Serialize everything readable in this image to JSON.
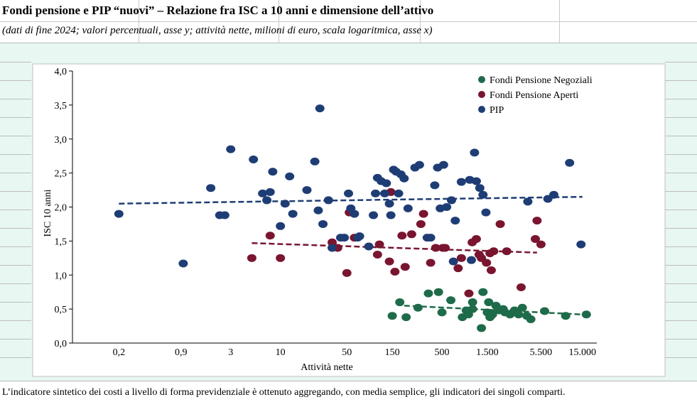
{
  "header": {
    "title": "Fondi pensione e PIP “nuovi” – Relazione fra ISC a 10 anni e dimensione dell’attivo",
    "subtitle": "(dati di fine 2024; valori percentuali, asse y; attività nette, milioni di euro, scala logaritmica, asse x)"
  },
  "footnote": "L’indicatore sintetico dei costi a livello di forma previdenziale è ottenuto aggregando, con media semplice, gli indicatori dei singoli comparti.",
  "chart_data": {
    "type": "scatter",
    "x_scale": "log",
    "xlabel": "Attività  nette",
    "ylabel": "ISC 10 anni",
    "x_ticks": [
      {
        "value": 0.2,
        "label": "0,2"
      },
      {
        "value": 0.9,
        "label": "0,9"
      },
      {
        "value": 3,
        "label": "3"
      },
      {
        "value": 10,
        "label": "10"
      },
      {
        "value": 50,
        "label": "50"
      },
      {
        "value": 150,
        "label": "150"
      },
      {
        "value": 500,
        "label": "500"
      },
      {
        "value": 1500,
        "label": "1.500"
      },
      {
        "value": 5500,
        "label": "5.500"
      },
      {
        "value": 15000,
        "label": "15.000"
      }
    ],
    "y_ticks": [
      {
        "value": 0,
        "label": "0,0"
      },
      {
        "value": 0.5,
        "label": "0,5"
      },
      {
        "value": 1.0,
        "label": "1,0"
      },
      {
        "value": 1.5,
        "label": "1,5"
      },
      {
        "value": 2.0,
        "label": "2,0"
      },
      {
        "value": 2.5,
        "label": "2,5"
      },
      {
        "value": 3.0,
        "label": "3,0"
      },
      {
        "value": 3.5,
        "label": "3,5"
      },
      {
        "value": 4.0,
        "label": "4,0"
      }
    ],
    "ylim": [
      0,
      4.0
    ],
    "xlim": [
      0.065,
      30000
    ],
    "grid": false,
    "legend_position": "top-right",
    "series": [
      {
        "name": "Fondi Pensione Negoziali",
        "color": "#1e6b4a",
        "trend": [
          [
            200,
            0.55
          ],
          [
            15000,
            0.42
          ]
        ],
        "points": [
          [
            150,
            0.4
          ],
          [
            180,
            0.6
          ],
          [
            210,
            0.38
          ],
          [
            280,
            0.52
          ],
          [
            360,
            0.73
          ],
          [
            460,
            0.75
          ],
          [
            500,
            0.45
          ],
          [
            620,
            0.63
          ],
          [
            820,
            0.38
          ],
          [
            900,
            0.48
          ],
          [
            950,
            0.42
          ],
          [
            1050,
            0.6
          ],
          [
            1050,
            0.5
          ],
          [
            1300,
            0.22
          ],
          [
            1350,
            0.75
          ],
          [
            1500,
            0.45
          ],
          [
            1550,
            0.6
          ],
          [
            1600,
            0.38
          ],
          [
            1700,
            0.42
          ],
          [
            1850,
            0.55
          ],
          [
            2000,
            0.48
          ],
          [
            2200,
            0.5
          ],
          [
            2300,
            0.45
          ],
          [
            2600,
            0.42
          ],
          [
            2900,
            0.48
          ],
          [
            3200,
            0.42
          ],
          [
            3500,
            0.52
          ],
          [
            3900,
            0.4
          ],
          [
            4300,
            0.35
          ],
          [
            6000,
            0.47
          ],
          [
            10000,
            0.4
          ],
          [
            16500,
            0.42
          ]
        ]
      },
      {
        "name": "Fondi Pensione Aperti",
        "color": "#7a1530",
        "trend": [
          [
            5,
            1.47
          ],
          [
            5000,
            1.33
          ]
        ],
        "points": [
          [
            5,
            1.25
          ],
          [
            7.8,
            1.58
          ],
          [
            10,
            1.25
          ],
          [
            35,
            1.48
          ],
          [
            40,
            1.4
          ],
          [
            50,
            1.03
          ],
          [
            53,
            1.92
          ],
          [
            60,
            1.55
          ],
          [
            105,
            1.3
          ],
          [
            110,
            1.45
          ],
          [
            140,
            1.2
          ],
          [
            145,
            2.22
          ],
          [
            160,
            1.05
          ],
          [
            190,
            1.58
          ],
          [
            205,
            1.12
          ],
          [
            240,
            1.6
          ],
          [
            300,
            1.75
          ],
          [
            320,
            1.9
          ],
          [
            380,
            1.18
          ],
          [
            430,
            1.4
          ],
          [
            510,
            1.4
          ],
          [
            540,
            1.4
          ],
          [
            740,
            1.1
          ],
          [
            800,
            1.25
          ],
          [
            960,
            0.73
          ],
          [
            1040,
            1.48
          ],
          [
            1150,
            1.53
          ],
          [
            1230,
            1.3
          ],
          [
            1300,
            1.25
          ],
          [
            1470,
            1.18
          ],
          [
            1600,
            1.32
          ],
          [
            1650,
            1.07
          ],
          [
            1750,
            1.35
          ],
          [
            2050,
            1.75
          ],
          [
            2400,
            1.35
          ],
          [
            3400,
            0.82
          ],
          [
            4800,
            1.53
          ],
          [
            5000,
            1.8
          ],
          [
            5500,
            1.45
          ]
        ]
      },
      {
        "name": "PIP",
        "color": "#1f3d75",
        "trend": [
          [
            0.2,
            2.05
          ],
          [
            15000,
            2.15
          ]
        ],
        "points": [
          [
            0.2,
            1.9
          ],
          [
            0.95,
            1.17
          ],
          [
            1.85,
            2.28
          ],
          [
            2.3,
            1.88
          ],
          [
            2.6,
            1.88
          ],
          [
            3,
            2.85
          ],
          [
            5.2,
            2.7
          ],
          [
            6.5,
            2.2
          ],
          [
            7.2,
            2.1
          ],
          [
            7.8,
            2.22
          ],
          [
            8.3,
            2.52
          ],
          [
            10,
            1.72
          ],
          [
            11.2,
            2.05
          ],
          [
            12.5,
            2.45
          ],
          [
            13.5,
            1.9
          ],
          [
            19,
            2.25
          ],
          [
            23,
            2.67
          ],
          [
            25,
            1.95
          ],
          [
            26,
            3.45
          ],
          [
            28,
            1.75
          ],
          [
            32,
            2.1
          ],
          [
            35,
            1.4
          ],
          [
            43,
            1.55
          ],
          [
            47,
            1.55
          ],
          [
            52,
            2.2
          ],
          [
            55,
            1.98
          ],
          [
            60,
            1.9
          ],
          [
            65,
            1.55
          ],
          [
            68,
            1.57
          ],
          [
            85,
            1.42
          ],
          [
            95,
            1.88
          ],
          [
            100,
            2.2
          ],
          [
            105,
            2.43
          ],
          [
            115,
            2.38
          ],
          [
            125,
            2.2
          ],
          [
            130,
            2.35
          ],
          [
            140,
            2.05
          ],
          [
            145,
            1.88
          ],
          [
            155,
            2.55
          ],
          [
            165,
            2.52
          ],
          [
            175,
            2.2
          ],
          [
            185,
            2.48
          ],
          [
            200,
            2.42
          ],
          [
            220,
            1.98
          ],
          [
            260,
            2.58
          ],
          [
            290,
            2.62
          ],
          [
            350,
            1.55
          ],
          [
            380,
            1.55
          ],
          [
            420,
            2.32
          ],
          [
            450,
            2.58
          ],
          [
            480,
            1.98
          ],
          [
            520,
            2.62
          ],
          [
            560,
            2.0
          ],
          [
            630,
            2.1
          ],
          [
            660,
            1.2
          ],
          [
            690,
            1.8
          ],
          [
            800,
            2.37
          ],
          [
            980,
            2.4
          ],
          [
            1020,
            1.22
          ],
          [
            1100,
            2.8
          ],
          [
            1150,
            2.38
          ],
          [
            1250,
            2.28
          ],
          [
            1350,
            2.18
          ],
          [
            1450,
            1.92
          ],
          [
            4000,
            2.08
          ],
          [
            6500,
            2.12
          ],
          [
            7500,
            2.18
          ],
          [
            11000,
            2.65
          ],
          [
            14500,
            1.45
          ]
        ]
      }
    ]
  }
}
